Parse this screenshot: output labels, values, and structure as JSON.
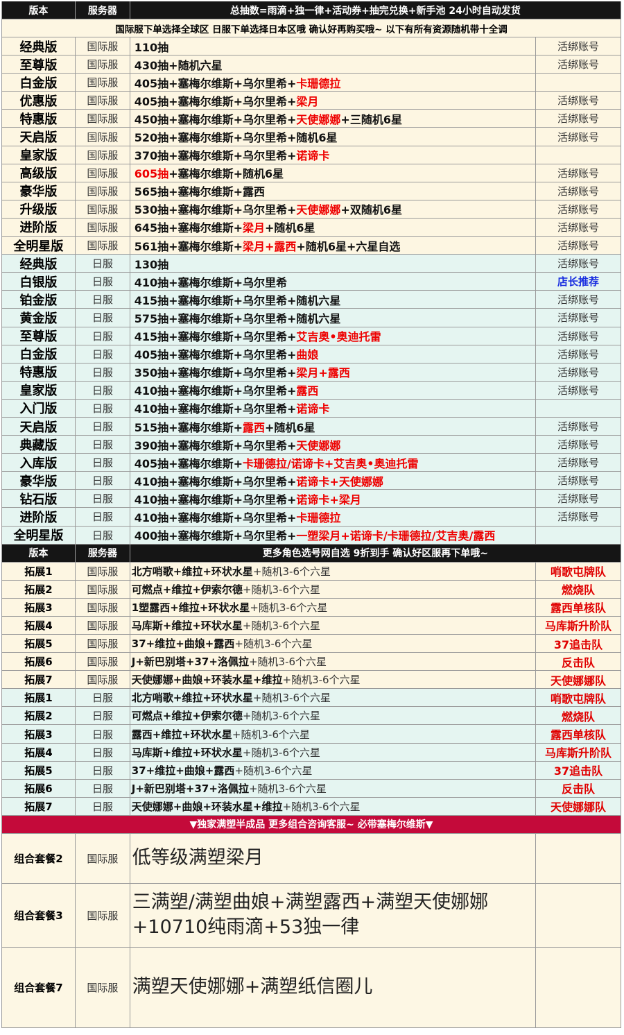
{
  "header1": {
    "col1": "版本",
    "col2": "服务器",
    "col3": "总抽数=雨滴+独一律+活动券+抽完兑换+新手池 24小时自动发货"
  },
  "notice": "国际服下单选择全球区 日服下单选择日本区哦  确认好再购买哦~ 以下有所有资源随机带十全调",
  "versions": [
    {
      "name": "经典版",
      "server": "国际服",
      "content": [
        [
          "110抽",
          "b"
        ]
      ],
      "note": "活绑账号"
    },
    {
      "name": "至尊版",
      "server": "国际服",
      "content": [
        [
          "430抽+随机六星",
          "b"
        ]
      ],
      "note": "活绑账号"
    },
    {
      "name": "白金版",
      "server": "国际服",
      "content": [
        [
          "405抽+塞梅尔维斯+乌尔里希+",
          "b"
        ],
        [
          "卡珊德拉",
          "r"
        ]
      ],
      "note": ""
    },
    {
      "name": "优惠版",
      "server": "国际服",
      "content": [
        [
          "405抽+塞梅尔维斯+乌尔里希+",
          "b"
        ],
        [
          "梁月",
          "r"
        ]
      ],
      "note": "活绑账号"
    },
    {
      "name": "特惠版",
      "server": "国际服",
      "content": [
        [
          "450抽+塞梅尔维斯+乌尔里希+",
          "b"
        ],
        [
          "天使娜娜",
          "r"
        ],
        [
          "+三随机6星",
          "b"
        ]
      ],
      "note": "活绑账号"
    },
    {
      "name": "天启版",
      "server": "国际服",
      "content": [
        [
          "520抽+塞梅尔维斯+乌尔里希+随机6星",
          "b"
        ]
      ],
      "note": "活绑账号"
    },
    {
      "name": "皇家版",
      "server": "国际服",
      "content": [
        [
          "370抽+塞梅尔维斯+乌尔里希+",
          "b"
        ],
        [
          "诺谛卡",
          "r"
        ]
      ],
      "note": ""
    },
    {
      "name": "高级版",
      "server": "国际服",
      "content": [
        [
          "605抽",
          "r"
        ],
        [
          "+塞梅尔维斯+随机6星",
          "b"
        ]
      ],
      "note": "活绑账号"
    },
    {
      "name": "豪华版",
      "server": "国际服",
      "content": [
        [
          "565抽+塞梅尔维斯+露西",
          "b"
        ]
      ],
      "note": "活绑账号"
    },
    {
      "name": "升级版",
      "server": "国际服",
      "content": [
        [
          "530抽+塞梅尔维斯+乌尔里希+",
          "b"
        ],
        [
          "天使娜娜",
          "r"
        ],
        [
          "+双随机6星",
          "b"
        ]
      ],
      "note": "活绑账号"
    },
    {
      "name": "进阶版",
      "server": "国际服",
      "content": [
        [
          "645抽+塞梅尔维斯+",
          "b"
        ],
        [
          "梁月",
          "r"
        ],
        [
          "+随机6星",
          "b"
        ]
      ],
      "note": "活绑账号"
    },
    {
      "name": "全明星版",
      "server": "国际服",
      "content": [
        [
          "561抽+塞梅尔维斯+",
          "b"
        ],
        [
          "梁月+露西",
          "r"
        ],
        [
          "+随机6星+六星自选",
          "b"
        ]
      ],
      "note": "活绑账号"
    },
    {
      "name": "经典版",
      "server": "日服",
      "content": [
        [
          "130抽",
          "b"
        ]
      ],
      "note": "活绑账号"
    },
    {
      "name": "白银版",
      "server": "日服",
      "content": [
        [
          "410抽+塞梅尔维斯+乌尔里希",
          "b"
        ]
      ],
      "note": "店长推荐",
      "note_blue": true
    },
    {
      "name": "铂金版",
      "server": "日服",
      "content": [
        [
          "415抽+塞梅尔维斯+乌尔里希+随机六星",
          "b"
        ]
      ],
      "note": "活绑账号"
    },
    {
      "name": "黄金版",
      "server": "日服",
      "content": [
        [
          "575抽+塞梅尔维斯+乌尔里希+随机六星",
          "b"
        ]
      ],
      "note": "活绑账号"
    },
    {
      "name": "至尊版",
      "server": "日服",
      "content": [
        [
          "415抽+塞梅尔维斯+乌尔里希+",
          "b"
        ],
        [
          "艾吉奥•奥迪托雷",
          "r"
        ]
      ],
      "note": "活绑账号"
    },
    {
      "name": "白金版",
      "server": "日服",
      "content": [
        [
          "405抽+塞梅尔维斯+乌尔里希+",
          "b"
        ],
        [
          "曲娘",
          "r"
        ]
      ],
      "note": "活绑账号"
    },
    {
      "name": "特惠版",
      "server": "日服",
      "content": [
        [
          "350抽+塞梅尔维斯+乌尔里希+",
          "b"
        ],
        [
          "梁月+露西",
          "r"
        ]
      ],
      "note": "活绑账号"
    },
    {
      "name": "皇家版",
      "server": "日服",
      "content": [
        [
          "410抽+塞梅尔维斯+乌尔里希+",
          "b"
        ],
        [
          "露西",
          "r"
        ]
      ],
      "note": "活绑账号"
    },
    {
      "name": "入门版",
      "server": "日服",
      "content": [
        [
          "410抽+塞梅尔维斯+乌尔里希+",
          "b"
        ],
        [
          "诺谛卡",
          "r"
        ]
      ],
      "note": ""
    },
    {
      "name": "天启版",
      "server": "日服",
      "content": [
        [
          "515抽+塞梅尔维斯+",
          "b"
        ],
        [
          "露西",
          "r"
        ],
        [
          "+随机6星",
          "b"
        ]
      ],
      "note": "活绑账号"
    },
    {
      "name": "典藏版",
      "server": "日服",
      "content": [
        [
          "390抽+塞梅尔维斯+乌尔里希+",
          "b"
        ],
        [
          "天使娜娜",
          "r"
        ]
      ],
      "note": "活绑账号"
    },
    {
      "name": "入库版",
      "server": "日服",
      "content": [
        [
          "405抽+塞梅尔维斯+",
          "b"
        ],
        [
          "卡珊德拉/诺谛卡+艾吉奥•奥迪托雷",
          "r"
        ]
      ],
      "note": "活绑账号"
    },
    {
      "name": "豪华版",
      "server": "日服",
      "content": [
        [
          "410抽+塞梅尔维斯+乌尔里希+",
          "b"
        ],
        [
          "诺谛卡+天使娜娜",
          "r"
        ]
      ],
      "note": "活绑账号"
    },
    {
      "name": "钻石版",
      "server": "日服",
      "content": [
        [
          "410抽+塞梅尔维斯+乌尔里希+",
          "b"
        ],
        [
          "诺谛卡+梁月",
          "r"
        ]
      ],
      "note": "活绑账号"
    },
    {
      "name": "进阶版",
      "server": "日服",
      "content": [
        [
          "410抽+塞梅尔维斯+乌尔里希+",
          "b"
        ],
        [
          "卡珊德拉",
          "r"
        ]
      ],
      "note": "活绑账号"
    },
    {
      "name": "全明星版",
      "server": "日服",
      "content": [
        [
          "400抽+塞梅尔维斯+乌尔里希+",
          "b"
        ],
        [
          "一塑梁月+诺谛卡/卡珊德拉/艾吉奥/露西",
          "r"
        ]
      ],
      "note": ""
    }
  ],
  "header2": {
    "col1": "版本",
    "col2": "服务器",
    "col3": "更多角色选号网自选 9折到手 确认好区服再下单哦~"
  },
  "extensions": [
    {
      "name": "拓展1",
      "server": "国际服",
      "content": [
        [
          "北方哨歌+维拉+环状水星",
          "b"
        ],
        [
          "+随机3-6个六星",
          "n"
        ]
      ],
      "note": "哨歌屯牌队"
    },
    {
      "name": "拓展2",
      "server": "国际服",
      "content": [
        [
          "可燃点+维拉+伊索尔德",
          "b"
        ],
        [
          "+随机3-6个六星",
          "n"
        ]
      ],
      "note": "燃烧队"
    },
    {
      "name": "拓展3",
      "server": "国际服",
      "content": [
        [
          "1塑露西+维拉+环状水星",
          "b"
        ],
        [
          "+随机3-6个六星",
          "n"
        ]
      ],
      "note": "露西单核队"
    },
    {
      "name": "拓展4",
      "server": "国际服",
      "content": [
        [
          "马库斯+维拉+环状水星",
          "b"
        ],
        [
          "+随机3-6个六星",
          "n"
        ]
      ],
      "note": "马库斯升阶队"
    },
    {
      "name": "拓展5",
      "server": "国际服",
      "content": [
        [
          "37+维拉+曲娘+露西",
          "b"
        ],
        [
          "+随机3-6个六星",
          "n"
        ]
      ],
      "note": "37追击队"
    },
    {
      "name": "拓展6",
      "server": "国际服",
      "content": [
        [
          "J+新巴别塔+37+洛佩拉",
          "b"
        ],
        [
          "+随机3-6个六星",
          "n"
        ]
      ],
      "note": "反击队"
    },
    {
      "name": "拓展7",
      "server": "国际服",
      "content": [
        [
          "天使娜娜+曲娘+环装水星+维拉",
          "b"
        ],
        [
          "+随机3-6个六星",
          "n"
        ]
      ],
      "note": "天使娜娜队"
    },
    {
      "name": "拓展1",
      "server": "日服",
      "content": [
        [
          "北方哨歌+维拉+环状水星",
          "b"
        ],
        [
          "+随机3-6个六星",
          "n"
        ]
      ],
      "note": "哨歌屯牌队"
    },
    {
      "name": "拓展2",
      "server": "日服",
      "content": [
        [
          "可燃点+维拉+伊索尔德",
          "b"
        ],
        [
          "+随机3-6个六星",
          "n"
        ]
      ],
      "note": "燃烧队"
    },
    {
      "name": "拓展3",
      "server": "日服",
      "content": [
        [
          "露西+维拉+环状水星",
          "b"
        ],
        [
          "+随机3-6个六星",
          "n"
        ]
      ],
      "note": "露西单核队"
    },
    {
      "name": "拓展4",
      "server": "日服",
      "content": [
        [
          "马库斯+维拉+环状水星",
          "b"
        ],
        [
          "+随机3-6个六星",
          "n"
        ]
      ],
      "note": "马库斯升阶队"
    },
    {
      "name": "拓展5",
      "server": "日服",
      "content": [
        [
          "37+维拉+曲娘+露西",
          "b"
        ],
        [
          "+随机3-6个六星",
          "n"
        ]
      ],
      "note": "37追击队"
    },
    {
      "name": "拓展6",
      "server": "日服",
      "content": [
        [
          "J+新巴别塔+37+洛佩拉",
          "b"
        ],
        [
          "+随机3-6个六星",
          "n"
        ]
      ],
      "note": "反击队"
    },
    {
      "name": "拓展7",
      "server": "日服",
      "content": [
        [
          "天使娜娜+曲娘+环装水星+维拉",
          "b"
        ],
        [
          "+随机3-6个六星",
          "n"
        ]
      ],
      "note": "天使娜娜队"
    }
  ],
  "banner": "▼独家满塑半成品 更多组合咨询客服~ 必带塞梅尔维斯▼",
  "combos": [
    {
      "name": "组合套餐2",
      "server": "国际服",
      "content": "低等级满塑梁月",
      "note": ""
    },
    {
      "name": "组合套餐3",
      "server": "国际服",
      "content": "三满塑/满塑曲娘+满塑露西+满塑天使娜娜+10710纯雨滴+53独一律",
      "note": ""
    },
    {
      "name": "组合套餐7",
      "server": "国际服",
      "content": "满塑天使娜娜+满塑纸信圈儿",
      "note": ""
    }
  ],
  "colors": {
    "header_bg": "#151515",
    "intl_bg": "#fdf6e2",
    "jp_bg": "#e5f5f1",
    "highlight_red": "#ee0000",
    "banner_bg": "#c40a3a",
    "recommend_blue": "#1a2fe0"
  }
}
